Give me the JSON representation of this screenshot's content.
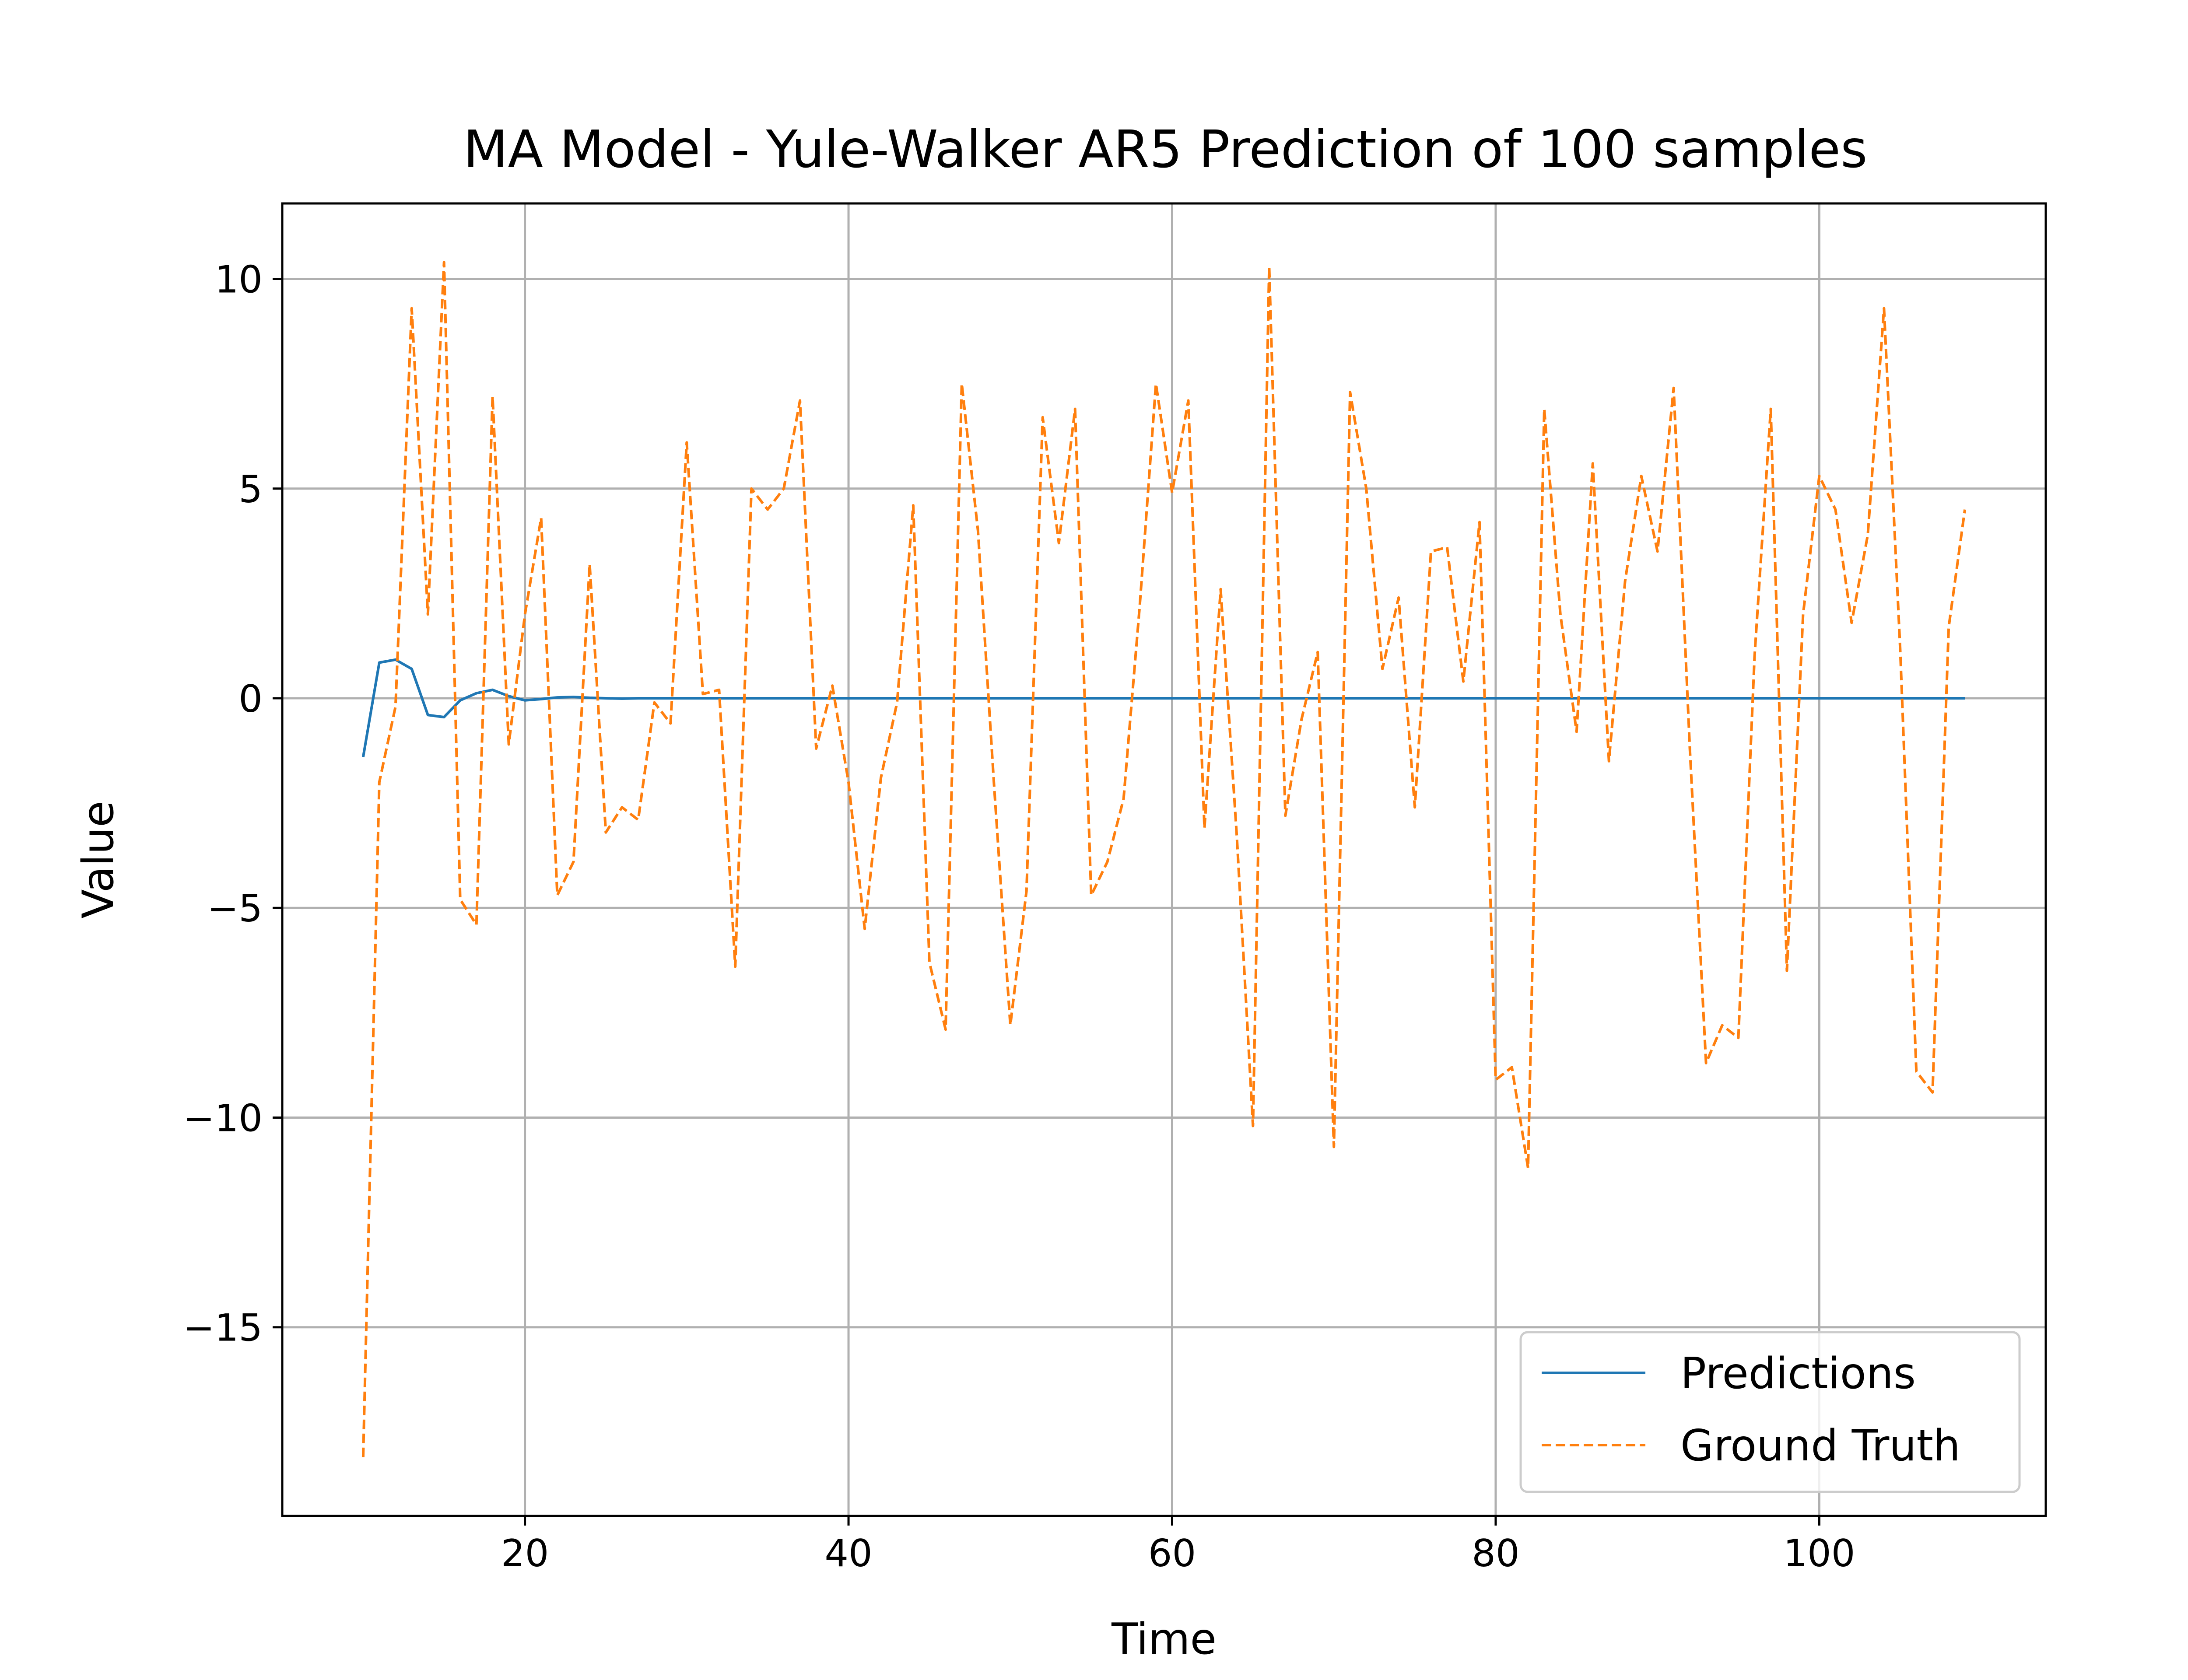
{
  "chart_data": {
    "type": "line",
    "title": "MA Model - Yule-Walker AR5 Prediction of 100 samples",
    "xlabel": "Time",
    "ylabel": "Value",
    "xlim": [
      5,
      114
    ],
    "ylim": [
      -19.5,
      11.8
    ],
    "xticks": [
      20,
      40,
      60,
      80,
      100
    ],
    "yticks": [
      -15,
      -10,
      -5,
      0,
      5,
      10
    ],
    "xtick_labels": [
      "20",
      "40",
      "60",
      "80",
      "100"
    ],
    "ytick_labels": [
      "−15",
      "−10",
      "−5",
      "0",
      "5",
      "10"
    ],
    "grid": true,
    "legend_position": "lower right",
    "series": [
      {
        "name": "Predictions",
        "color": "#1f77b4",
        "style": "solid",
        "x": [
          10,
          11,
          12,
          13,
          14,
          15,
          16,
          17,
          18,
          19,
          20,
          21,
          22,
          23,
          24,
          25,
          26,
          27,
          28,
          29,
          30,
          31,
          32,
          33,
          34,
          35,
          36,
          37,
          38,
          39,
          40,
          41,
          42,
          43,
          44,
          45,
          46,
          47,
          48,
          49,
          50,
          51,
          52,
          53,
          54,
          55,
          56,
          57,
          58,
          59,
          60,
          61,
          62,
          63,
          64,
          65,
          66,
          67,
          68,
          69,
          70,
          71,
          72,
          73,
          74,
          75,
          76,
          77,
          78,
          79,
          80,
          81,
          82,
          83,
          84,
          85,
          86,
          87,
          88,
          89,
          90,
          91,
          92,
          93,
          94,
          95,
          96,
          97,
          98,
          99,
          100,
          101,
          102,
          103,
          104,
          105,
          106,
          107,
          108,
          109
        ],
        "y": [
          -1.4,
          0.85,
          0.92,
          0.7,
          -0.4,
          -0.45,
          -0.05,
          0.12,
          0.2,
          0.05,
          -0.05,
          -0.02,
          0.02,
          0.03,
          0.01,
          0.0,
          -0.01,
          0,
          0,
          0,
          0,
          0,
          0,
          0,
          0,
          0,
          0,
          0,
          0,
          0,
          0,
          0,
          0,
          0,
          0,
          0,
          0,
          0,
          0,
          0,
          0,
          0,
          0,
          0,
          0,
          0,
          0,
          0,
          0,
          0,
          0,
          0,
          0,
          0,
          0,
          0,
          0,
          0,
          0,
          0,
          0,
          0,
          0,
          0,
          0,
          0,
          0,
          0,
          0,
          0,
          0,
          0,
          0,
          0,
          0,
          0,
          0,
          0,
          0,
          0,
          0,
          0,
          0,
          0,
          0,
          0,
          0,
          0,
          0,
          0,
          0,
          0,
          0,
          0,
          0,
          0,
          0,
          0,
          0,
          0
        ]
      },
      {
        "name": "Ground Truth",
        "color": "#ff7f0e",
        "style": "dashed",
        "x": [
          10,
          11,
          12,
          13,
          14,
          15,
          16,
          17,
          18,
          19,
          20,
          21,
          22,
          23,
          24,
          25,
          26,
          27,
          28,
          29,
          30,
          31,
          32,
          33,
          34,
          35,
          36,
          37,
          38,
          39,
          40,
          41,
          42,
          43,
          44,
          45,
          46,
          47,
          48,
          49,
          50,
          51,
          52,
          53,
          54,
          55,
          56,
          57,
          58,
          59,
          60,
          61,
          62,
          63,
          64,
          65,
          66,
          67,
          68,
          69,
          70,
          71,
          72,
          73,
          74,
          75,
          76,
          77,
          78,
          79,
          80,
          81,
          82,
          83,
          84,
          85,
          86,
          87,
          88,
          89,
          90,
          91,
          92,
          93,
          94,
          95,
          96,
          97,
          98,
          99,
          100,
          101,
          102,
          103,
          104,
          105,
          106,
          107,
          108,
          109
        ],
        "y": [
          -18.1,
          -2.0,
          -0.2,
          9.3,
          2.0,
          10.4,
          -4.8,
          -5.4,
          7.2,
          -1.1,
          2.0,
          4.3,
          -4.7,
          -3.9,
          3.2,
          -3.2,
          -2.6,
          -2.9,
          -0.1,
          -0.6,
          6.1,
          0.1,
          0.2,
          -6.4,
          5.0,
          4.5,
          5.0,
          7.1,
          -1.2,
          0.3,
          -2.0,
          -5.5,
          -1.9,
          -0.1,
          4.6,
          -6.3,
          -7.9,
          7.5,
          4.0,
          -2.1,
          -7.8,
          -4.6,
          6.7,
          3.7,
          6.9,
          -4.7,
          -3.9,
          -2.4,
          2.2,
          7.5,
          4.9,
          7.1,
          -3.1,
          2.6,
          -3.3,
          -10.2,
          10.3,
          -2.8,
          -0.5,
          1.1,
          -10.7,
          7.3,
          5.0,
          0.7,
          2.4,
          -2.6,
          3.5,
          3.6,
          0.4,
          4.2,
          -9.1,
          -8.8,
          -11.2,
          6.9,
          2.0,
          -0.8,
          5.6,
          -1.5,
          2.8,
          5.3,
          3.5,
          7.4,
          -1.2,
          -8.7,
          -7.8,
          -8.1,
          1.0,
          6.9,
          -6.5,
          2.0,
          5.3,
          4.5,
          1.8,
          3.9,
          9.3,
          1.2,
          -8.9,
          -9.4,
          1.7,
          4.5
        ]
      }
    ]
  }
}
